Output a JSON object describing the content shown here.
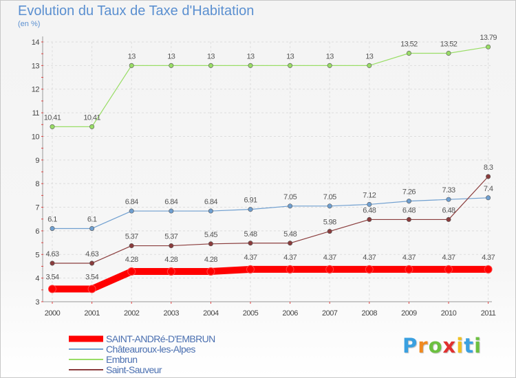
{
  "chart_data": {
    "type": "line",
    "title": "Evolution du Taux de Taxe d'Habitation",
    "unit_label": "(en %)",
    "x": [
      "2000",
      "2001",
      "2002",
      "2003",
      "2004",
      "2005",
      "2006",
      "2007",
      "2008",
      "2009",
      "2010",
      "2011"
    ],
    "ylim": [
      3,
      14
    ],
    "yticks": [
      "3",
      "4",
      "5",
      "6",
      "7",
      "8",
      "9",
      "10",
      "11",
      "12",
      "13",
      "14"
    ],
    "grid": true,
    "legend_position": "bottom-left",
    "series": [
      {
        "name": "SAINT-ANDRé-D'EMBRUN",
        "color": "#ff0000",
        "values": [
          3.54,
          3.54,
          4.28,
          4.28,
          4.28,
          4.37,
          4.37,
          4.37,
          4.37,
          4.37,
          4.37,
          4.37
        ],
        "labels": [
          "3.54",
          "3.54",
          "4.28",
          "4.28",
          "4.28",
          "4.37",
          "4.37",
          "4.37",
          "4.37",
          "4.37",
          "4.37",
          "4.37"
        ]
      },
      {
        "name": "Châteauroux-les-Alpes",
        "color": "#6f9fd0",
        "values": [
          6.1,
          6.1,
          6.84,
          6.84,
          6.84,
          6.91,
          7.05,
          7.05,
          7.12,
          7.26,
          7.33,
          7.4
        ],
        "labels": [
          "6.1",
          "6.1",
          "6.84",
          "6.84",
          "6.84",
          "6.91",
          "7.05",
          "7.05",
          "7.12",
          "7.26",
          "7.33",
          "7.4"
        ]
      },
      {
        "name": "Embrun",
        "color": "#99dd66",
        "values": [
          10.41,
          10.41,
          13,
          13,
          13,
          13,
          13,
          13,
          13,
          13.52,
          13.52,
          13.79
        ],
        "labels": [
          "10.41",
          "10.41",
          "13",
          "13",
          "13",
          "13",
          "13",
          "13",
          "13",
          "13.52",
          "13.52",
          "13.79"
        ]
      },
      {
        "name": "Saint-Sauveur",
        "color": "#8a3c3c",
        "values": [
          4.63,
          4.63,
          5.37,
          5.37,
          5.45,
          5.48,
          5.48,
          5.98,
          6.48,
          6.48,
          6.48,
          8.3
        ],
        "labels": [
          "4.63",
          "4.63",
          "5.37",
          "5.37",
          "5.45",
          "5.48",
          "5.48",
          "5.98",
          "6.48",
          "6.48",
          "6.48",
          "8.3"
        ]
      }
    ]
  },
  "brand": {
    "letters": [
      "P",
      "r",
      "o",
      "x",
      "i",
      "t",
      "i"
    ],
    "colors": [
      "#3aa0e0",
      "#f08a20",
      "#6cc040",
      "#e03030",
      "#f0c020",
      "#3aa0e0",
      "#6cc040"
    ]
  }
}
